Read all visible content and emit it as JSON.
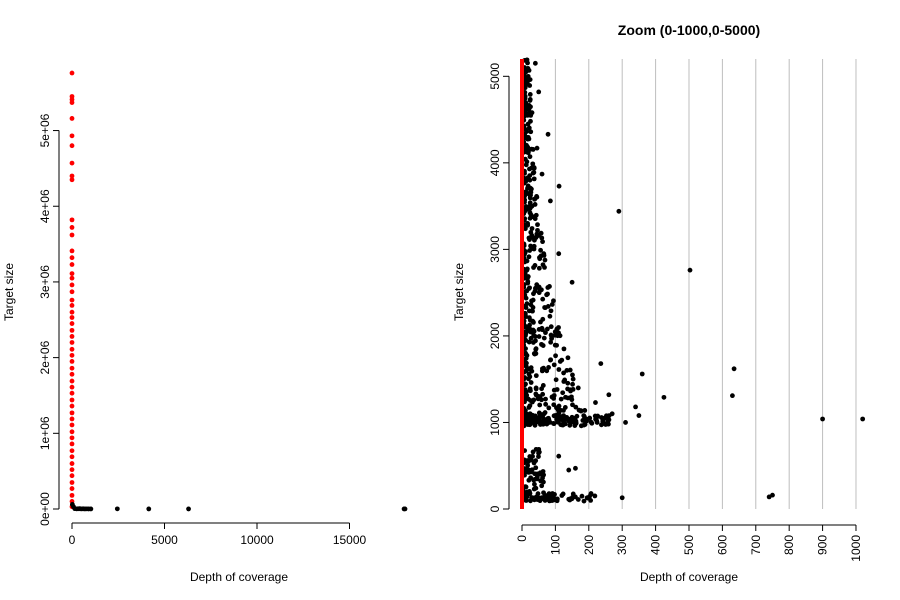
{
  "colors": {
    "points_default": "#000000",
    "points_highlight": "#ff0000",
    "gridline": "#bebebe",
    "axis": "#000000"
  },
  "chart_data": [
    {
      "type": "scatter",
      "title": "",
      "xlabel": "Depth of coverage",
      "ylabel": "Target size",
      "xlim": [
        0,
        18000
      ],
      "ylim": [
        0,
        5800000
      ],
      "x_ticks": [
        0,
        5000,
        10000,
        15000
      ],
      "x_tick_labels": [
        "0",
        "5000",
        "10000",
        "15000"
      ],
      "y_ticks": [
        0,
        1000000,
        2000000,
        3000000,
        4000000,
        5000000
      ],
      "y_tick_labels": [
        "0e+00",
        "1e+06",
        "2e+06",
        "3e+06",
        "4e+06",
        "5e+06"
      ],
      "grid": false,
      "series": [
        {
          "color": "#ff0000",
          "points": [
            [
              0,
              5760000
            ],
            [
              0,
              5450000
            ],
            [
              0,
              5410000
            ],
            [
              0,
              5370000
            ],
            [
              0,
              5160000
            ],
            [
              0,
              4930000
            ],
            [
              0,
              4800000
            ],
            [
              0,
              4570000
            ],
            [
              0,
              4400000
            ],
            [
              0,
              4350000
            ],
            [
              0,
              3820000
            ],
            [
              0,
              3720000
            ],
            [
              0,
              3620000
            ],
            [
              0,
              3410000
            ],
            [
              0,
              3320000
            ],
            [
              0,
              3230000
            ],
            [
              0,
              3110000
            ],
            [
              0,
              3050000
            ],
            [
              0,
              2960000
            ],
            [
              0,
              2870000
            ],
            [
              0,
              2760000
            ],
            [
              0,
              2690000
            ],
            [
              0,
              2600000
            ],
            [
              0,
              2530000
            ],
            [
              0,
              2450000
            ],
            [
              0,
              2360000
            ],
            [
              0,
              2280000
            ],
            [
              0,
              2200000
            ],
            [
              0,
              2110000
            ],
            [
              0,
              2030000
            ],
            [
              0,
              1950000
            ],
            [
              0,
              1860000
            ],
            [
              0,
              1780000
            ],
            [
              0,
              1690000
            ],
            [
              0,
              1610000
            ],
            [
              0,
              1530000
            ],
            [
              0,
              1440000
            ],
            [
              0,
              1360000
            ],
            [
              0,
              1270000
            ],
            [
              0,
              1190000
            ],
            [
              0,
              1110000
            ],
            [
              0,
              1020000
            ],
            [
              0,
              940000
            ],
            [
              0,
              860000
            ],
            [
              0,
              770000
            ],
            [
              0,
              690000
            ],
            [
              0,
              600000
            ],
            [
              0,
              520000
            ],
            [
              0,
              440000
            ],
            [
              0,
              350000
            ],
            [
              0,
              270000
            ],
            [
              0,
              180000
            ],
            [
              0,
              100000
            ],
            [
              0,
              30000
            ]
          ]
        },
        {
          "color": "#000000",
          "points": [
            [
              20,
              60000
            ],
            [
              80,
              30000
            ],
            [
              150,
              5000
            ],
            [
              250,
              2000
            ],
            [
              330,
              3000
            ],
            [
              420,
              4000
            ],
            [
              500,
              1500
            ],
            [
              600,
              2500
            ],
            [
              700,
              1000
            ],
            [
              800,
              2000
            ],
            [
              900,
              1000
            ],
            [
              1020,
              1000
            ],
            [
              2450,
              2000
            ],
            [
              4150,
              1000
            ],
            [
              6300,
              1000
            ],
            [
              17950,
              1000
            ],
            [
              18000,
              1500
            ]
          ]
        }
      ]
    },
    {
      "type": "scatter",
      "title": "Zoom (0-1000,0-5000)",
      "xlabel": "Depth of coverage",
      "ylabel": "Target size",
      "xlim": [
        0,
        1030
      ],
      "ylim": [
        0,
        5200
      ],
      "x_ticks": [
        0,
        100,
        200,
        300,
        400,
        500,
        600,
        700,
        800,
        900,
        1000
      ],
      "x_tick_labels": [
        "0",
        "100",
        "200",
        "300",
        "400",
        "500",
        "600",
        "700",
        "800",
        "900",
        "1000"
      ],
      "y_ticks": [
        0,
        1000,
        2000,
        3000,
        4000,
        5000
      ],
      "y_tick_labels": [
        "0",
        "1000",
        "2000",
        "3000",
        "4000",
        "5000"
      ],
      "vertical_gridlines_at": [
        0,
        100,
        200,
        300,
        400,
        500,
        600,
        700,
        800,
        900,
        1000
      ],
      "grid": true,
      "series": [
        {
          "color": "#000000",
          "points": [
            [
              290,
              3440
            ],
            [
              503,
              2760
            ],
            [
              111,
              3730
            ],
            [
              78,
              4330
            ],
            [
              50,
              4820
            ],
            [
              40,
              5150
            ],
            [
              635,
              1620
            ],
            [
              630,
              1310
            ],
            [
              425,
              1290
            ],
            [
              360,
              1560
            ],
            [
              236,
              1680
            ],
            [
              900,
              1040
            ],
            [
              1020,
              1040
            ],
            [
              740,
              140
            ],
            [
              750,
              160
            ],
            [
              300,
              130
            ],
            [
              195,
              130
            ],
            [
              160,
              470
            ],
            [
              140,
              450
            ],
            [
              110,
              610
            ],
            [
              340,
              1180
            ],
            [
              350,
              1080
            ],
            [
              310,
              1000
            ],
            [
              270,
              1100
            ],
            [
              260,
              1320
            ],
            [
              250,
              980
            ],
            [
              220,
              1230
            ],
            [
              150,
              2620
            ],
            [
              110,
              2950
            ],
            [
              85,
              3560
            ],
            [
              60,
              3870
            ],
            [
              45,
              4170
            ],
            [
              30,
              4580
            ],
            [
              20,
              4960
            ],
            [
              15,
              5190
            ]
          ],
          "bulk_points_note": "",
          "bulk_points": []
        },
        {
          "color": "#ff0000",
          "points": [
            [
              0,
              0
            ],
            [
              0,
              5200
            ]
          ]
        }
      ]
    }
  ]
}
